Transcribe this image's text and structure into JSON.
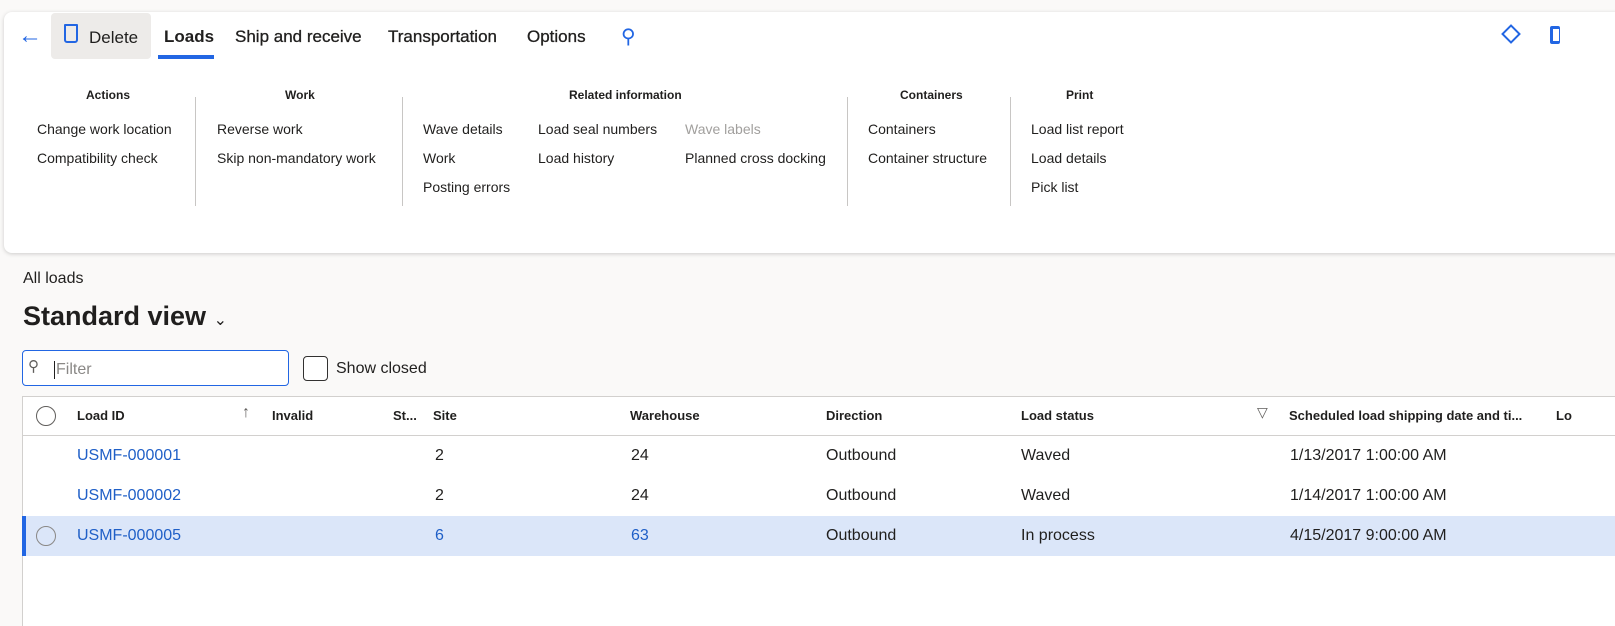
{
  "toolbar": {
    "delete_label": "Delete",
    "tabs": [
      "Loads",
      "Ship and receive",
      "Transportation",
      "Options"
    ],
    "active_tab": "Loads",
    "accent": "#2266e3"
  },
  "ribbon": {
    "actions": {
      "title": "Actions",
      "items": [
        "Change work location",
        "Compatibility check"
      ]
    },
    "work": {
      "title": "Work",
      "items": [
        "Reverse work",
        "Skip non-mandatory work"
      ]
    },
    "related": {
      "title": "Related information",
      "col1": [
        "Wave details",
        "Work",
        "Posting errors"
      ],
      "col2": [
        "Load seal numbers",
        "Load history"
      ],
      "col3": [
        "Wave labels",
        "Planned cross docking"
      ],
      "disabled": [
        "Wave labels"
      ]
    },
    "containers": {
      "title": "Containers",
      "items": [
        "Containers",
        "Container structure"
      ]
    },
    "print": {
      "title": "Print",
      "items": [
        "Load list report",
        "Load details",
        "Pick list"
      ]
    }
  },
  "page": {
    "breadcrumb": "All loads",
    "view_title": "Standard view",
    "filter_placeholder": "Filter",
    "show_closed_label": "Show closed"
  },
  "grid": {
    "columns": [
      "Load ID",
      "Invalid",
      "St...",
      "Site",
      "Warehouse",
      "Direction",
      "Load status",
      "Scheduled load shipping date and ti...",
      "Lo"
    ],
    "rows": [
      {
        "load_id": "USMF-000001",
        "site": "2",
        "warehouse": "24",
        "direction": "Outbound",
        "status": "Waved",
        "scheduled": "1/13/2017 1:00:00 AM"
      },
      {
        "load_id": "USMF-000002",
        "site": "2",
        "warehouse": "24",
        "direction": "Outbound",
        "status": "Waved",
        "scheduled": "1/14/2017 1:00:00 AM"
      },
      {
        "load_id": "USMF-000005",
        "site": "6",
        "warehouse": "63",
        "direction": "Outbound",
        "status": "In process",
        "scheduled": "4/15/2017 9:00:00 AM",
        "selected": true
      }
    ],
    "selected_color": "#dbe6f9"
  }
}
